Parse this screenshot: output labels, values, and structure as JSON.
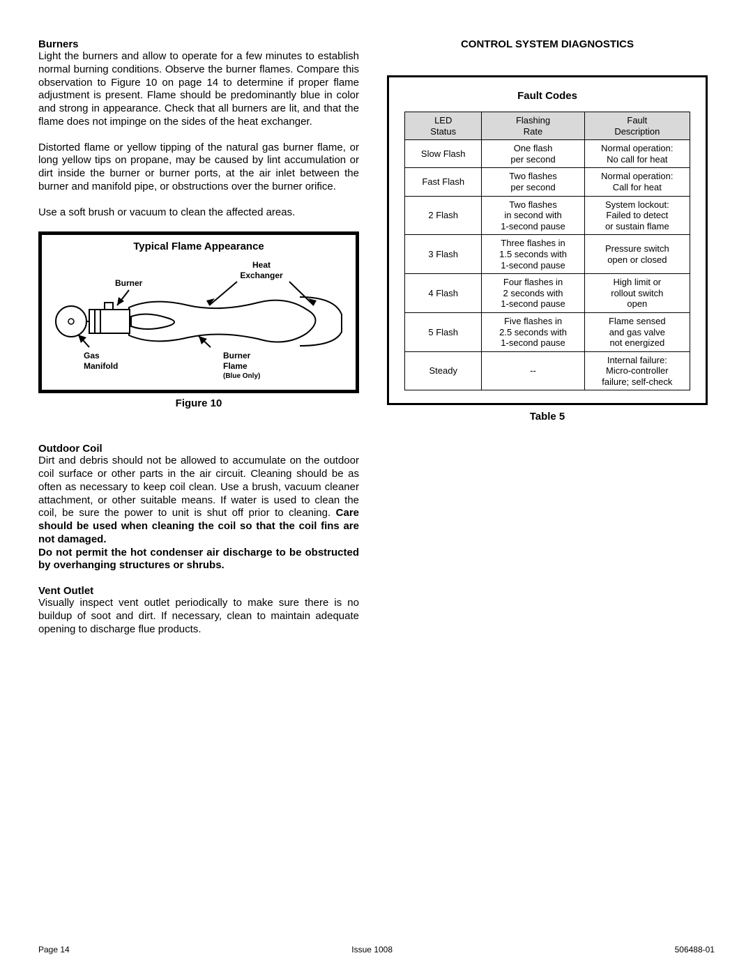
{
  "left": {
    "burners_heading": "Burners",
    "burners_p1": "Light the burners and allow to operate for a few minutes to establish normal burning conditions. Observe the burner flames. Compare this observation to Figure 10 on page 14 to determine if proper flame adjustment is present. Flame should be predominantly blue in color and strong in appearance. Check that all burners are lit, and that the flame does not impinge on the sides of the heat exchanger.",
    "burners_p2": "Distorted flame or yellow tipping of the natural gas burner flame, or long yellow tips on propane, may be caused by lint accumulation or dirt inside the burner or burner ports, at the air inlet between the burner and manifold pipe, or obstructions over the burner orifice.",
    "burners_p3": "Use a soft brush or vacuum to clean the affected areas.",
    "figure_title": "Typical Flame Appearance",
    "figure_caption": "Figure 10",
    "diagram_labels": {
      "heat": "Heat",
      "exchanger": "Exchanger",
      "burner": "Burner",
      "gas": "Gas",
      "manifold": "Manifold",
      "burner2": "Burner",
      "flame": "Flame",
      "blue_only": "(Blue Only)"
    },
    "outdoor_heading": "Outdoor Coil",
    "outdoor_p1": "Dirt and debris should not be allowed to accumulate on the outdoor coil surface or other parts in the air circuit. Cleaning should be as often as necessary to keep coil clean. Use a brush, vacuum cleaner attachment, or other suitable means. If water is used to clean the coil, be sure the power to unit is shut off prior to cleaning. ",
    "outdoor_bold1": "Care should be used when cleaning the coil so that the coil fins are not damaged.",
    "outdoor_bold2": "Do not permit the hot condenser air discharge to be obstructed by overhanging structures or shrubs.",
    "vent_heading": "Vent Outlet",
    "vent_p1": "Visually inspect vent outlet periodically to make sure there is no buildup of soot and dirt. If necessary, clean to maintain adequate opening to discharge flue products."
  },
  "right": {
    "section_title": "CONTROL SYSTEM DIAGNOSTICS",
    "fault_title": "Fault Codes",
    "table_caption": "Table 5",
    "columns": [
      "LED\nStatus",
      "Flashing\nRate",
      "Fault\nDescription"
    ],
    "rows": [
      [
        "Slow Flash",
        "One flash\nper second",
        "Normal operation:\nNo call for heat"
      ],
      [
        "Fast Flash",
        "Two flashes\nper second",
        "Normal operation:\nCall for heat"
      ],
      [
        "2 Flash",
        "Two flashes\nin second with\n1-second pause",
        "System lockout:\nFailed to detect\nor sustain flame"
      ],
      [
        "3 Flash",
        "Three flashes in\n1.5 seconds with\n1-second pause",
        "Pressure switch\nopen or closed"
      ],
      [
        "4 Flash",
        "Four flashes in\n2 seconds with\n1-second pause",
        "High limit or\nrollout switch\nopen"
      ],
      [
        "5 Flash",
        "Five flashes in\n2.5 seconds with\n1-second pause",
        "Flame sensed\nand gas valve\nnot energized"
      ],
      [
        "Steady",
        "--",
        "Internal failure:\nMicro-controller\nfailure; self-check"
      ]
    ]
  },
  "footer": {
    "page": "Page 14",
    "issue": "Issue 1008",
    "docnum": "506488-01"
  },
  "style": {
    "border_color": "#000000",
    "header_bg": "#d9d9d9",
    "text_color": "#000000",
    "background": "#ffffff",
    "body_font_size": 15,
    "table_font_size": 13
  }
}
